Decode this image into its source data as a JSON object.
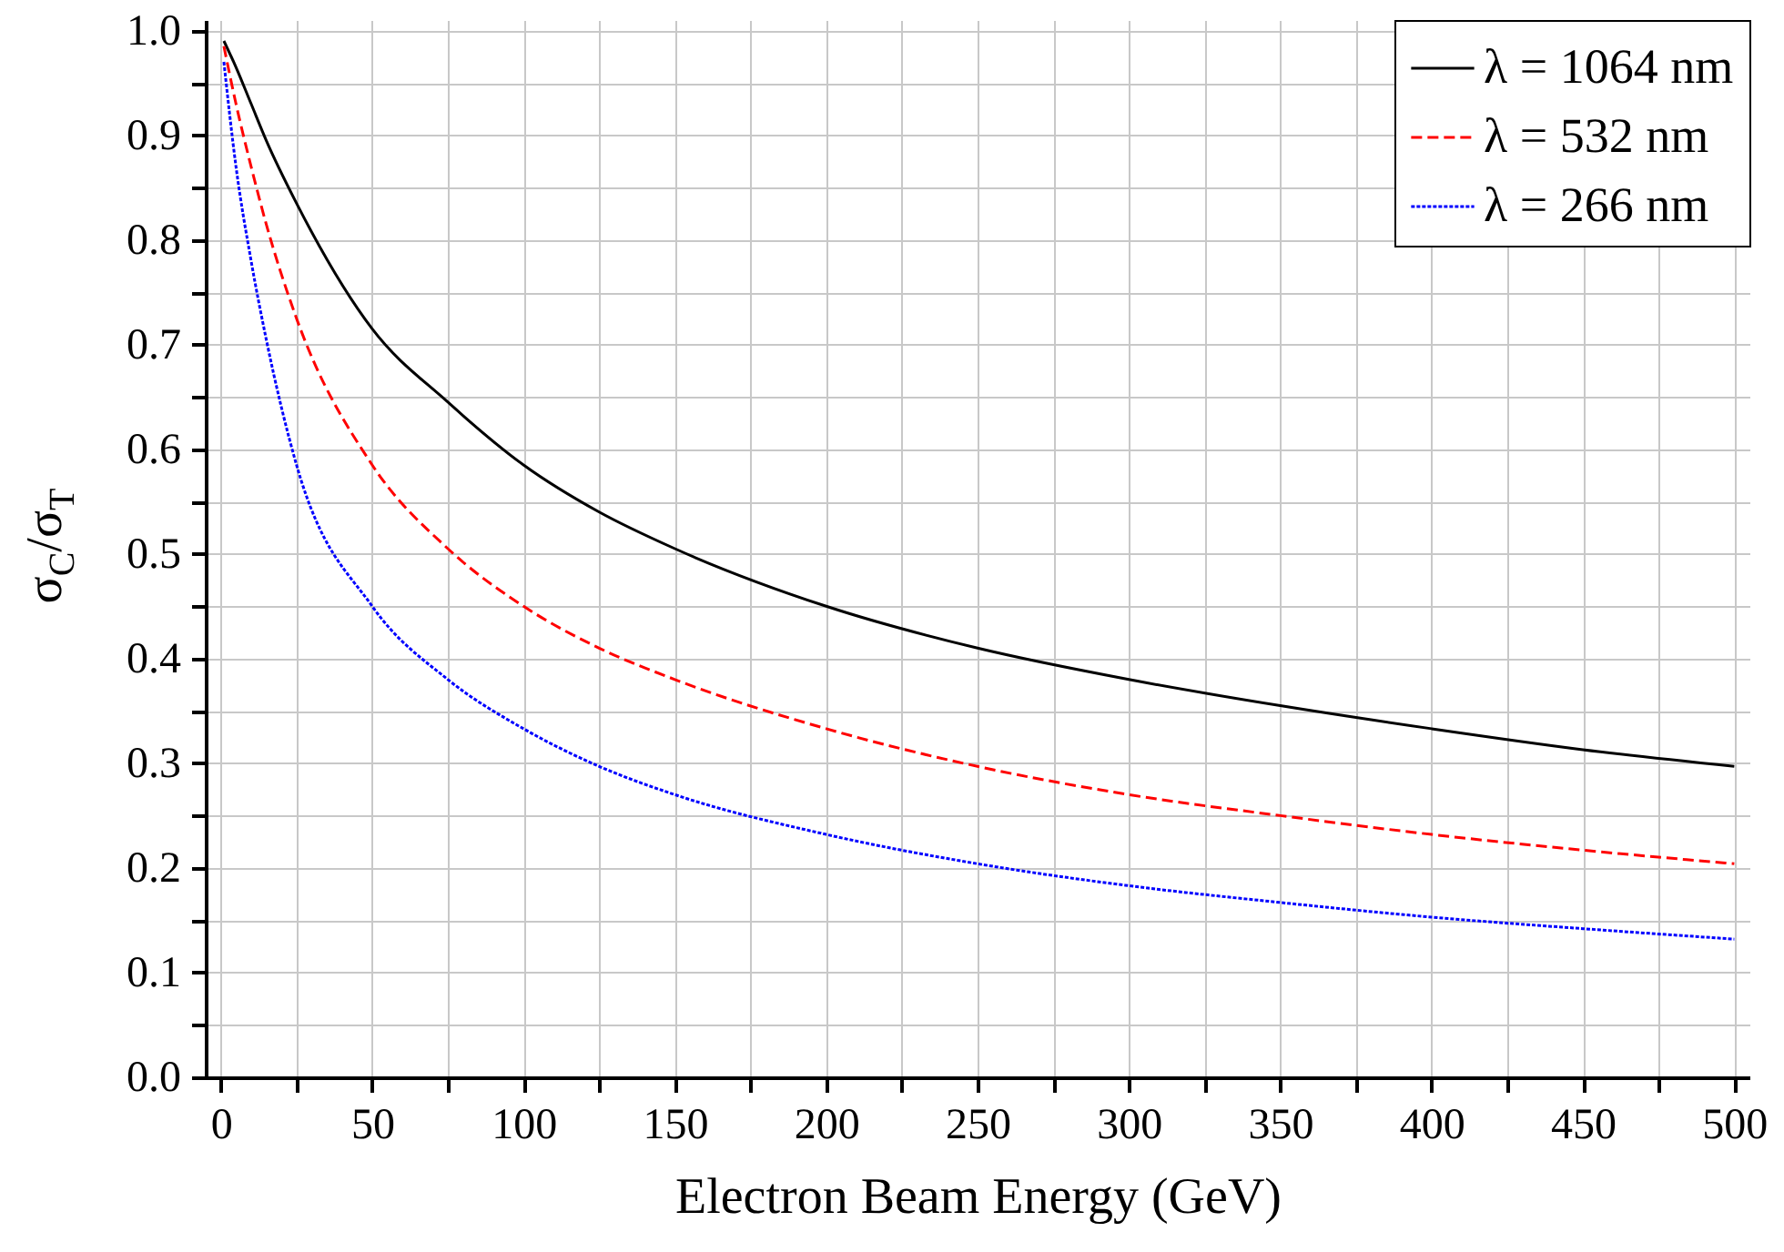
{
  "chart_data": {
    "type": "line",
    "xlabel": "Electron Beam Energy (GeV)",
    "ylabel": "σ$_{C}$/σ$_{T}$",
    "x": [
      1,
      5,
      10,
      15,
      25,
      50,
      75,
      100,
      125,
      150,
      200,
      250,
      300,
      350,
      400,
      450,
      500
    ],
    "series": [
      {
        "name": "λ = 1064 nm",
        "color": "#000000",
        "line_style": "solid",
        "values": [
          0.99,
          0.965,
          0.93,
          0.895,
          0.835,
          0.715,
          0.645,
          0.585,
          0.54,
          0.505,
          0.45,
          0.41,
          0.38,
          0.355,
          0.333,
          0.313,
          0.297
        ]
      },
      {
        "name": "λ = 532 nm",
        "color": "#ff0000",
        "line_style": "dashed",
        "values": [
          0.985,
          0.93,
          0.87,
          0.815,
          0.725,
          0.585,
          0.505,
          0.45,
          0.41,
          0.38,
          0.333,
          0.297,
          0.27,
          0.25,
          0.232,
          0.217,
          0.204
        ]
      },
      {
        "name": "λ = 266 nm",
        "color": "#0000ff",
        "line_style": "dotted",
        "values": [
          0.97,
          0.87,
          0.78,
          0.705,
          0.585,
          0.45,
          0.38,
          0.333,
          0.297,
          0.27,
          0.232,
          0.204,
          0.183,
          0.167,
          0.153,
          0.142,
          0.132
        ]
      }
    ],
    "xlim": [
      -5,
      505
    ],
    "xticks": [
      0,
      {
        "value": 25,
        "label": null
      },
      50,
      {
        "value": 75,
        "label": null
      },
      100,
      {
        "value": 125,
        "label": null
      },
      150,
      {
        "value": 175,
        "label": null
      },
      200,
      {
        "value": 225,
        "label": null
      },
      250,
      {
        "value": 275,
        "label": null
      },
      300,
      {
        "value": 325,
        "label": null
      },
      350,
      {
        "value": 375,
        "label": null
      },
      400,
      {
        "value": 425,
        "label": null
      },
      450,
      {
        "value": 475,
        "label": null
      },
      500
    ],
    "ylim": [
      0,
      1.01
    ],
    "yticks": [
      {
        "value": 0,
        "label": "0.0"
      },
      {
        "value": 0.05,
        "label": null
      },
      0.1,
      {
        "value": 0.15,
        "label": null
      },
      0.2,
      {
        "value": 0.25,
        "label": null
      },
      0.3,
      {
        "value": 0.35,
        "label": null
      },
      0.4,
      {
        "value": 0.45,
        "label": null
      },
      0.5,
      {
        "value": 0.55,
        "label": null
      },
      0.6,
      {
        "value": 0.65,
        "label": null
      },
      0.7,
      {
        "value": 0.75,
        "label": null
      },
      0.8,
      {
        "value": 0.85,
        "label": null
      },
      0.9,
      {
        "value": 0.95,
        "label": null
      },
      {
        "value": 1,
        "label": "1.0"
      }
    ],
    "grid": true,
    "legend": "top right"
  }
}
